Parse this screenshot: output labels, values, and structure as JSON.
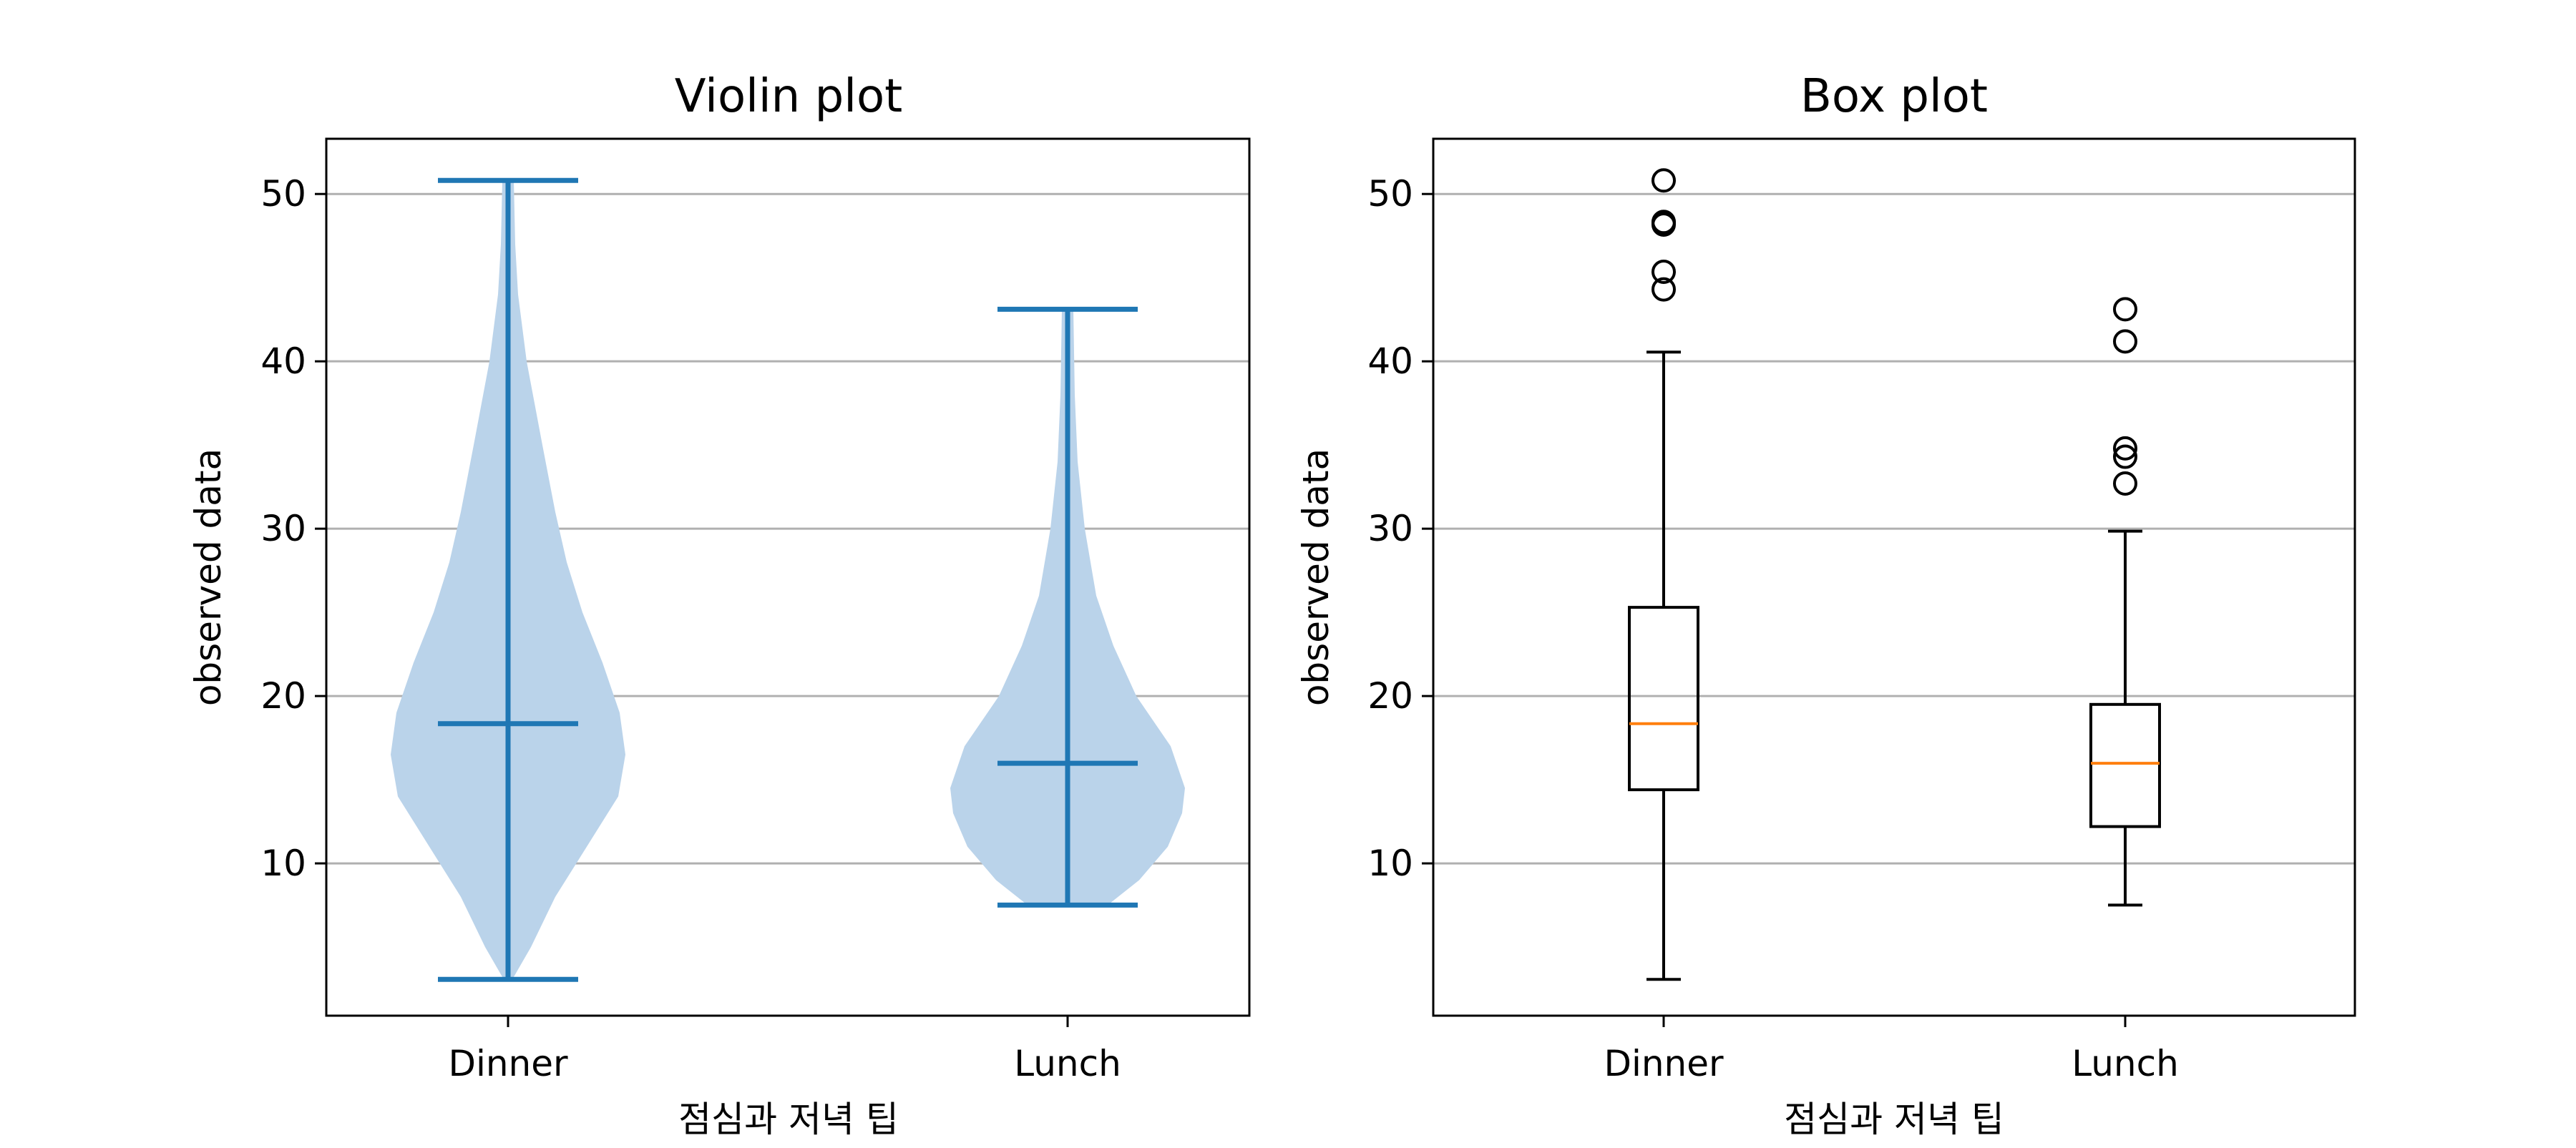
{
  "chart_data": [
    {
      "type": "violin",
      "title": "Violin plot",
      "xlabel": "점심과 저녁 팁",
      "ylabel": "observed data",
      "categories": [
        "Dinner",
        "Lunch"
      ],
      "ylim": [
        0.9,
        53.3
      ],
      "yticks": [
        "10",
        "20",
        "30",
        "40",
        "50"
      ],
      "grid": "y",
      "color": "#1f77b4",
      "fill_color": "#bad3ea",
      "series": [
        {
          "category": "Dinner",
          "min": 3.07,
          "median": 18.35,
          "max": 50.81,
          "density_profile": [
            [
              3.07,
              0.03
            ],
            [
              5,
              0.16
            ],
            [
              8,
              0.33
            ],
            [
              11,
              0.55
            ],
            [
              14,
              0.77
            ],
            [
              16.5,
              0.82
            ],
            [
              19,
              0.78
            ],
            [
              22,
              0.66
            ],
            [
              25,
              0.52
            ],
            [
              28,
              0.41
            ],
            [
              31,
              0.33
            ],
            [
              35,
              0.24
            ],
            [
              40,
              0.13
            ],
            [
              44,
              0.07
            ],
            [
              47,
              0.05
            ],
            [
              50.81,
              0.04
            ]
          ]
        },
        {
          "category": "Lunch",
          "min": 7.51,
          "median": 15.98,
          "max": 43.11,
          "density_profile": [
            [
              7.51,
              0.28
            ],
            [
              9,
              0.5
            ],
            [
              11,
              0.7
            ],
            [
              13,
              0.8
            ],
            [
              14.5,
              0.82
            ],
            [
              17,
              0.72
            ],
            [
              20,
              0.48
            ],
            [
              23,
              0.32
            ],
            [
              26,
              0.2
            ],
            [
              30,
              0.12
            ],
            [
              34,
              0.07
            ],
            [
              38,
              0.05
            ],
            [
              43.11,
              0.04
            ]
          ]
        }
      ]
    },
    {
      "type": "box",
      "title": "Box plot",
      "xlabel": "점심과 저녁 팁",
      "ylabel": "observed data",
      "categories": [
        "Dinner",
        "Lunch"
      ],
      "ylim": [
        0.9,
        53.3
      ],
      "yticks": [
        "10",
        "20",
        "30",
        "40",
        "50"
      ],
      "grid": "y",
      "median_color": "#ff7f0e",
      "series": [
        {
          "category": "Dinner",
          "whisker_low": 3.07,
          "q1": 14.4,
          "median": 18.35,
          "q3": 25.3,
          "whisker_high": 40.55,
          "outliers": [
            44.3,
            45.35,
            48.17,
            48.27,
            48.33,
            50.81
          ]
        },
        {
          "category": "Lunch",
          "whisker_low": 7.51,
          "q1": 12.2,
          "median": 15.98,
          "q3": 19.5,
          "whisker_high": 29.85,
          "outliers": [
            32.7,
            34.3,
            34.8,
            41.19,
            43.11
          ]
        }
      ]
    }
  ]
}
